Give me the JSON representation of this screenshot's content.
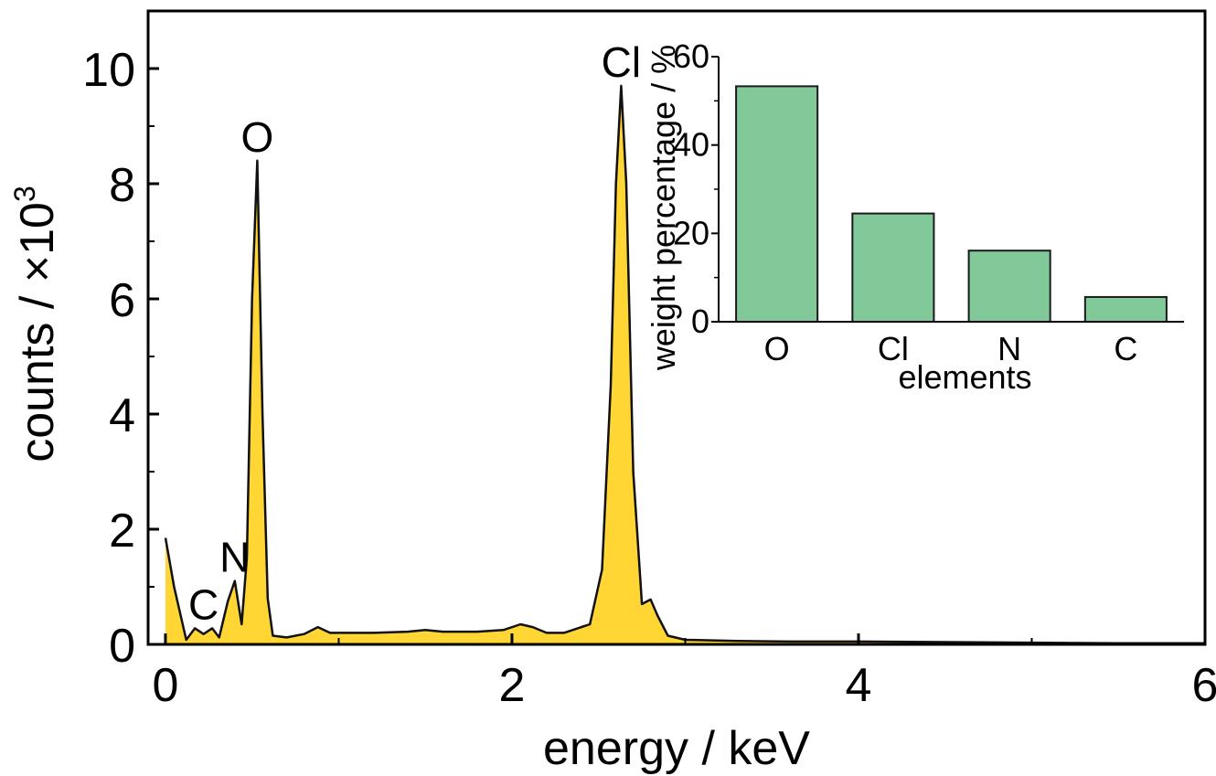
{
  "colors": {
    "spectrum_fill": "#FFD633",
    "spectrum_line": "#111111",
    "bar_fill": "#82C99A",
    "bar_stroke": "#1a1a1a",
    "axis": "#000000"
  },
  "chart_data": [
    {
      "type": "area",
      "xlabel": "energy / keV",
      "ylabel": "counts / ×10",
      "ylabel_superscript": "3",
      "xlim": [
        -0.1,
        6.0
      ],
      "ylim": [
        0,
        11.0
      ],
      "xticks": [
        "0",
        "2",
        "4",
        "6"
      ],
      "yticks": [
        "0",
        "2",
        "4",
        "6",
        "8",
        "10"
      ],
      "grid": false,
      "series": [
        {
          "x": [
            0.0,
            0.05,
            0.12,
            0.17,
            0.22,
            0.27,
            0.31,
            0.36,
            0.4,
            0.44,
            0.47,
            0.5,
            0.53,
            0.56,
            0.59,
            0.62,
            0.7,
            0.8,
            0.88,
            0.95,
            1.05,
            1.2,
            1.4,
            1.5,
            1.6,
            1.8,
            1.95,
            2.05,
            2.12,
            2.2,
            2.3,
            2.45,
            2.52,
            2.57,
            2.6,
            2.63,
            2.66,
            2.7,
            2.75,
            2.8,
            2.84,
            2.9,
            3.0,
            3.3,
            3.6,
            4.0,
            4.5,
            5.0,
            5.5,
            6.0
          ],
          "y": [
            1.85,
            1.0,
            0.08,
            0.28,
            0.18,
            0.28,
            0.12,
            0.75,
            1.1,
            0.35,
            1.5,
            6.0,
            8.4,
            4.0,
            0.8,
            0.15,
            0.12,
            0.18,
            0.3,
            0.2,
            0.2,
            0.2,
            0.22,
            0.25,
            0.22,
            0.22,
            0.25,
            0.35,
            0.3,
            0.2,
            0.2,
            0.35,
            1.3,
            4.5,
            8.0,
            9.7,
            8.0,
            3.0,
            0.7,
            0.78,
            0.5,
            0.15,
            0.08,
            0.06,
            0.05,
            0.05,
            0.04,
            0.03,
            0.02,
            0.02
          ]
        }
      ],
      "annotations": [
        {
          "text": "O",
          "x": 0.53,
          "y": 8.4
        },
        {
          "text": "Cl",
          "x": 2.63,
          "y": 9.7
        },
        {
          "text": "N",
          "x": 0.4,
          "y": 1.1
        },
        {
          "text": "C",
          "x": 0.22,
          "y": 0.28
        }
      ]
    },
    {
      "type": "bar",
      "inset": true,
      "categories": [
        "O",
        "Cl",
        "N",
        "C"
      ],
      "values": [
        53.3,
        24.5,
        16.1,
        5.6
      ],
      "xlabel": "elements",
      "ylabel": "weight percentage / %",
      "ylim": [
        0,
        60
      ],
      "yticks": [
        "0",
        "20",
        "40",
        "60"
      ],
      "grid": false
    }
  ]
}
